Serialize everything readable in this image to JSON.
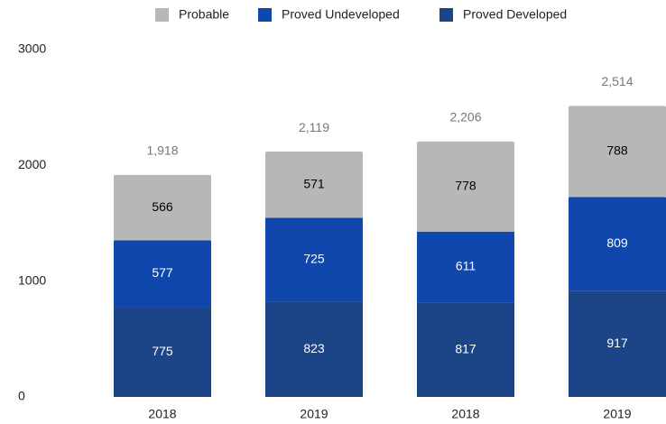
{
  "chart_data": {
    "type": "stacked_bar",
    "categories": [
      "2018",
      "2019",
      "2018",
      "2019"
    ],
    "series": [
      {
        "name": "Probable",
        "color": "#b7b7b7",
        "label_color": "#000000",
        "values": [
          566,
          571,
          778,
          788
        ]
      },
      {
        "name": "Proved Undeveloped",
        "color": "#0f47ad",
        "label_color": "#ffffff",
        "values": [
          577,
          725,
          611,
          809
        ]
      },
      {
        "name": "Proved Developed",
        "color": "#1c4587",
        "label_color": "#ffffff",
        "values": [
          775,
          823,
          817,
          917
        ]
      }
    ],
    "totals": [
      1918,
      2119,
      2206,
      2514
    ],
    "total_labels": [
      "1,918",
      "2,119",
      "2,206",
      "2,514"
    ],
    "ylim": [
      0,
      3000
    ],
    "yticks": [
      0,
      1000,
      2000,
      3000
    ],
    "grid": false,
    "legend": "top"
  }
}
